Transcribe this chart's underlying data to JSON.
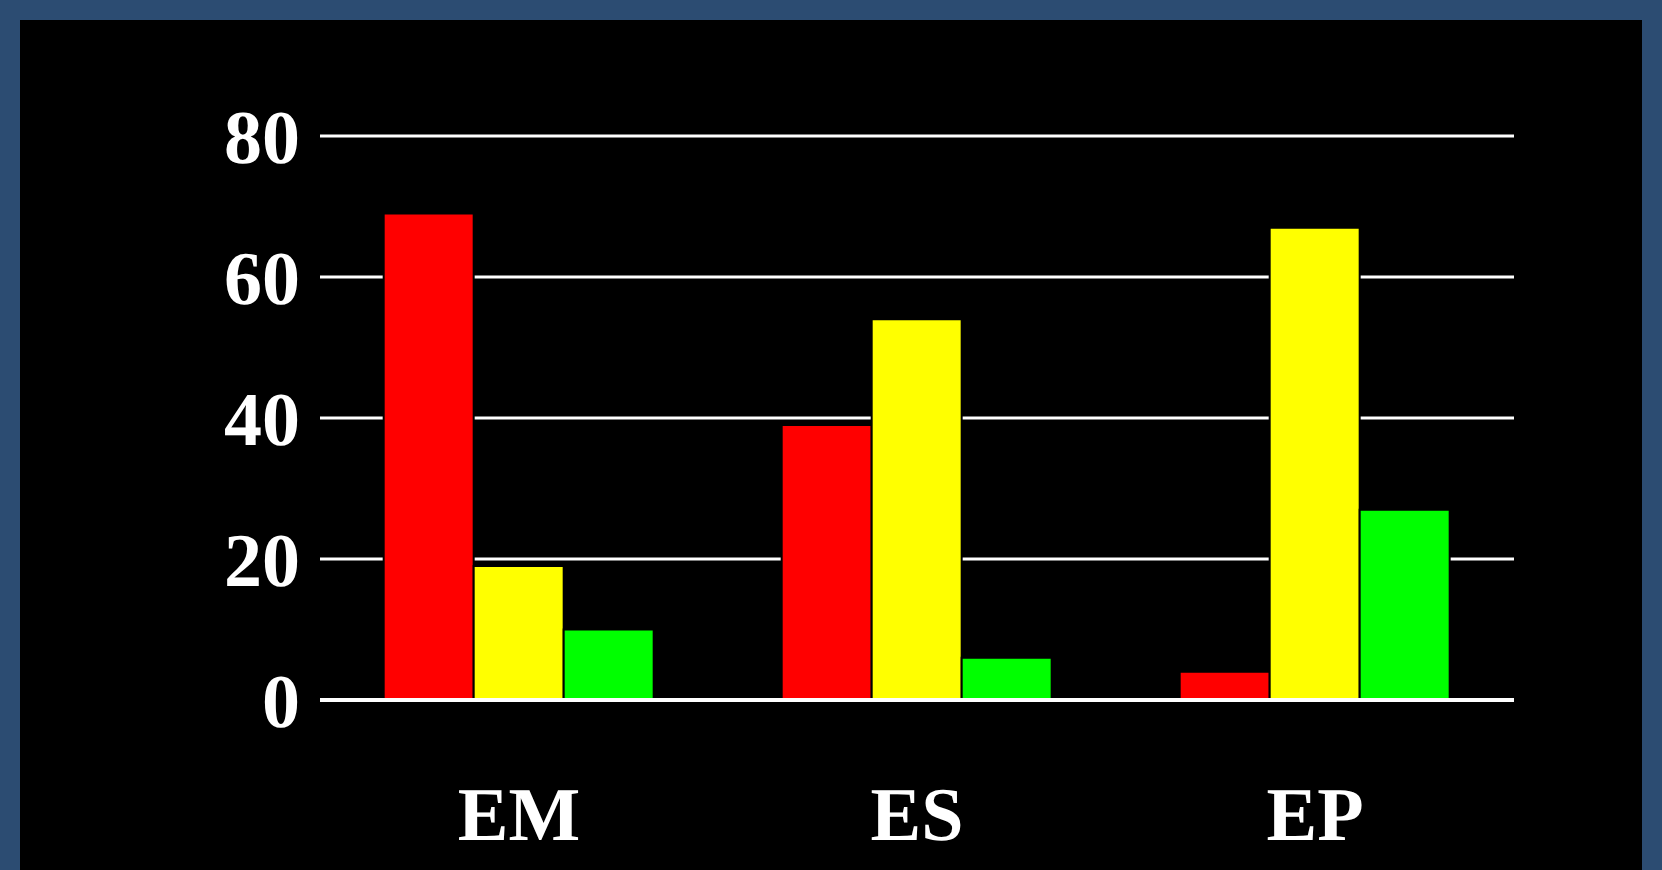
{
  "chart_data": {
    "type": "bar",
    "categories": [
      "EM",
      "ES",
      "EP"
    ],
    "series": [
      {
        "color": "#ff0000",
        "values": [
          69,
          39,
          4
        ]
      },
      {
        "color": "#ffff00",
        "values": [
          19,
          54,
          67
        ]
      },
      {
        "color": "#00ff00",
        "values": [
          10,
          6,
          27
        ]
      }
    ],
    "ylim": [
      0,
      80
    ],
    "yticks": [
      0,
      20,
      40,
      60,
      80
    ],
    "grid": "y",
    "legend": false
  }
}
